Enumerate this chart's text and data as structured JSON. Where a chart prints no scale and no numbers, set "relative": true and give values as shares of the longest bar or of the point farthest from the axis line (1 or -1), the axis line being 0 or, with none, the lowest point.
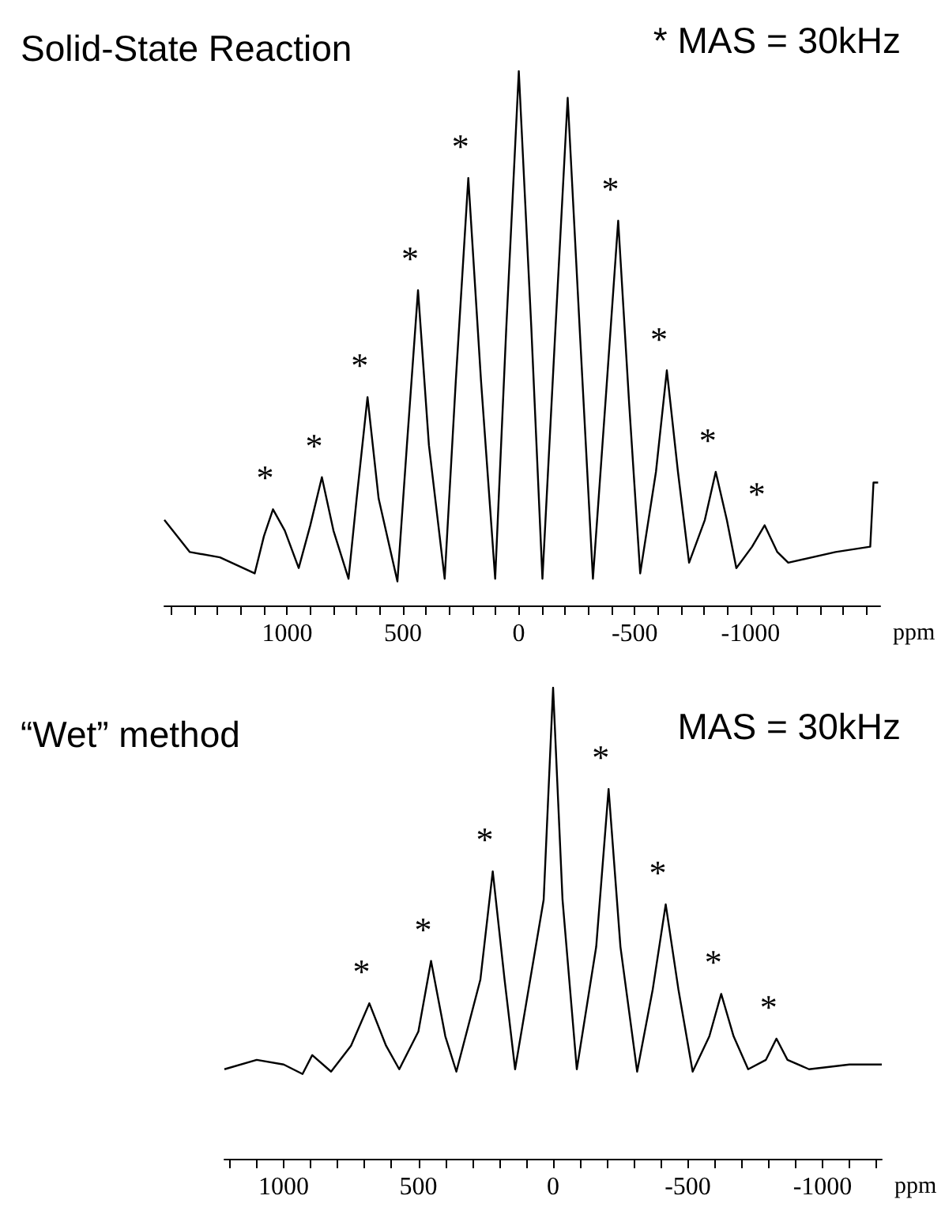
{
  "chart_data": [
    {
      "type": "line",
      "title": "Solid-State Reaction",
      "xlabel": "ppm",
      "relative": true,
      "color": "#000000",
      "annotations": [
        "* MAS = 30kHz",
        {
          "text": "*",
          "x": 1061,
          "y": 0.18
        },
        {
          "text": "*",
          "x": 850,
          "y": 0.24
        },
        {
          "text": "*",
          "x": 653,
          "y": 0.39
        },
        {
          "text": "*",
          "x": 435,
          "y": 0.59
        },
        {
          "text": "*",
          "x": 218,
          "y": 0.8
        },
        {
          "text": "*",
          "x": -429,
          "y": 0.72
        },
        {
          "text": "*",
          "x": -639,
          "y": 0.44
        },
        {
          "text": "*",
          "x": -850,
          "y": 0.25
        },
        {
          "text": "*",
          "x": -1061,
          "y": 0.15
        }
      ],
      "xlim": [
        1530,
        -1560
      ],
      "xticks": [
        {
          "value": 1500,
          "label": null
        },
        {
          "value": 1400,
          "label": null
        },
        {
          "value": 1300,
          "label": null
        },
        {
          "value": 1200,
          "label": null
        },
        {
          "value": 1100,
          "label": null
        },
        1000,
        {
          "value": 900,
          "label": null
        },
        {
          "value": 800,
          "label": null
        },
        {
          "value": 700,
          "label": null
        },
        {
          "value": 600,
          "label": null
        },
        500,
        {
          "value": 400,
          "label": null
        },
        {
          "value": 300,
          "label": null
        },
        {
          "value": 200,
          "label": null
        },
        {
          "value": 100,
          "label": null
        },
        0,
        {
          "value": -100,
          "label": null
        },
        {
          "value": -200,
          "label": null
        },
        {
          "value": -300,
          "label": null
        },
        {
          "value": -400,
          "label": null
        },
        -500,
        {
          "value": -600,
          "label": null
        },
        {
          "value": -700,
          "label": null
        },
        {
          "value": -800,
          "label": null
        },
        {
          "value": -900,
          "label": null
        },
        -1000,
        {
          "value": -1100,
          "label": null
        },
        {
          "value": -1200,
          "label": null
        },
        {
          "value": -1300,
          "label": null
        },
        {
          "value": -1400,
          "label": null
        },
        {
          "value": -1500,
          "label": null
        }
      ],
      "x": [
        1530,
        1420,
        1290,
        1140,
        1100,
        1061,
        1010,
        950,
        900,
        850,
        800,
        735,
        700,
        653,
        605,
        524,
        483,
        435,
        388,
        320,
        272,
        218,
        163,
        102,
        54,
        0,
        -54,
        -102,
        -156,
        -211,
        -265,
        -320,
        -374,
        -429,
        -476,
        -524,
        -592,
        -639,
        -687,
        -735,
        -803,
        -850,
        -898,
        -939,
        -1007,
        -1061,
        -1116,
        -1163,
        -1367,
        -1517,
        -1531,
        -1551
      ],
      "values": [
        0.16,
        0.1,
        0.09,
        0.06,
        0.13,
        0.18,
        0.14,
        0.07,
        0.15,
        0.24,
        0.14,
        0.05,
        0.2,
        0.39,
        0.2,
        0.045,
        0.3,
        0.59,
        0.3,
        0.05,
        0.42,
        0.8,
        0.42,
        0.05,
        0.52,
        1.0,
        0.52,
        0.05,
        0.5,
        0.95,
        0.5,
        0.05,
        0.38,
        0.72,
        0.38,
        0.06,
        0.25,
        0.44,
        0.25,
        0.08,
        0.16,
        0.25,
        0.16,
        0.07,
        0.11,
        0.15,
        0.1,
        0.08,
        0.1,
        0.11,
        0.23,
        0.23
      ]
    },
    {
      "type": "line",
      "title": "“Wet” method",
      "xlabel": "ppm",
      "relative": true,
      "color": "#000000",
      "annotations": [
        "MAS = 30kHz",
        {
          "text": "*",
          "x": 682,
          "y": 0.33
        },
        {
          "text": "*",
          "x": 453,
          "y": 0.42
        },
        {
          "text": "*",
          "x": 224,
          "y": 0.61
        },
        {
          "text": "*",
          "x": -206,
          "y": 0.785
        },
        {
          "text": "*",
          "x": -418,
          "y": 0.54
        },
        {
          "text": "*",
          "x": -624,
          "y": 0.35
        },
        {
          "text": "*",
          "x": -829,
          "y": 0.255
        }
      ],
      "xlim": [
        1220,
        -1220
      ],
      "xticks": [
        {
          "value": 1200,
          "label": null
        },
        {
          "value": 1100,
          "label": null
        },
        1000,
        {
          "value": 900,
          "label": null
        },
        {
          "value": 800,
          "label": null
        },
        {
          "value": 700,
          "label": null
        },
        {
          "value": 600,
          "label": null
        },
        500,
        {
          "value": 400,
          "label": null
        },
        {
          "value": 300,
          "label": null
        },
        {
          "value": 200,
          "label": null
        },
        {
          "value": 100,
          "label": null
        },
        0,
        {
          "value": -100,
          "label": null
        },
        {
          "value": -200,
          "label": null
        },
        {
          "value": -300,
          "label": null
        },
        {
          "value": -400,
          "label": null
        },
        -500,
        {
          "value": -600,
          "label": null
        },
        {
          "value": -700,
          "label": null
        },
        {
          "value": -800,
          "label": null
        },
        {
          "value": -900,
          "label": null
        },
        -1000,
        {
          "value": -1100,
          "label": null
        },
        {
          "value": -1200,
          "label": null
        }
      ],
      "x": [
        1220,
        1100,
        1000,
        930,
        894,
        824,
        750,
        682,
        620,
        571,
        500,
        453,
        400,
        359,
        270,
        224,
        180,
        141,
        35,
        0,
        -35,
        -88,
        -160,
        -206,
        -250,
        -312,
        -370,
        -418,
        -465,
        -518,
        -580,
        -624,
        -670,
        -724,
        -790,
        -829,
        -870,
        -950,
        -1100,
        -1220
      ],
      "values": [
        0.19,
        0.21,
        0.2,
        0.18,
        0.22,
        0.185,
        0.24,
        0.33,
        0.24,
        0.19,
        0.27,
        0.42,
        0.26,
        0.185,
        0.38,
        0.61,
        0.38,
        0.19,
        0.55,
        1.0,
        0.55,
        0.19,
        0.45,
        0.785,
        0.45,
        0.185,
        0.36,
        0.54,
        0.36,
        0.185,
        0.26,
        0.35,
        0.26,
        0.19,
        0.21,
        0.255,
        0.21,
        0.19,
        0.2,
        0.2
      ]
    }
  ]
}
